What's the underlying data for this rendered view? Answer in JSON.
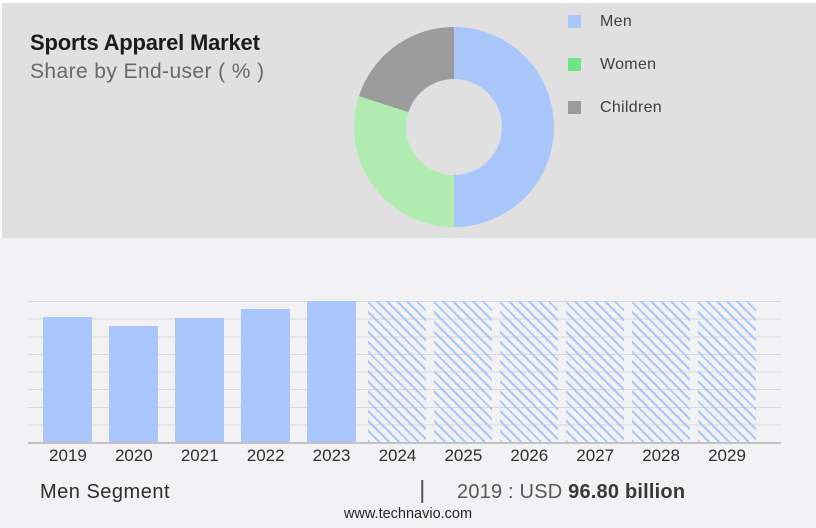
{
  "header": {
    "title": "Sports Apparel Market",
    "subtitle": "Share by End-user ( % )"
  },
  "legend": {
    "items": [
      {
        "label": "Men",
        "color": "#a9c7fa"
      },
      {
        "label": "Women",
        "color": "#72e287"
      },
      {
        "label": "Children",
        "color": "#9b9b9b"
      }
    ]
  },
  "chart_data": [
    {
      "type": "pie",
      "subtype": "donut",
      "title": "Sports Apparel Market",
      "subtitle": "Share by End-user ( % )",
      "units": "%",
      "donut_hole_ratio": 0.48,
      "legend_position": "right",
      "segments": [
        {
          "label": "Men",
          "value": 50,
          "color": "#a9c6fa"
        },
        {
          "label": "Women",
          "value": 30,
          "color": "#b0ecb0"
        },
        {
          "label": "Children",
          "value": 20,
          "color": "#9b9b9b"
        }
      ]
    },
    {
      "type": "bar",
      "title": "Men Segment",
      "units": "USD billion",
      "gridlines": true,
      "annotation": "2019 : USD 96.80 billion",
      "forecast_note": "2024-2029 drawn as full-height hatched forecast placeholders",
      "bars": [
        {
          "year": "2019",
          "value_usd_billion": 96.8,
          "height_frac": 0.886,
          "hatched": false
        },
        {
          "year": "2020",
          "value_usd_billion": 89.8,
          "height_frac": 0.823,
          "hatched": false
        },
        {
          "year": "2021",
          "value_usd_billion": 95.6,
          "height_frac": 0.876,
          "hatched": false
        },
        {
          "year": "2022",
          "value_usd_billion": 103.0,
          "height_frac": 0.943,
          "hatched": false
        },
        {
          "year": "2023",
          "value_usd_billion": 109.2,
          "height_frac": 1.0,
          "hatched": false
        },
        {
          "year": "2024",
          "value_usd_billion": null,
          "height_frac": 1.0,
          "hatched": true
        },
        {
          "year": "2025",
          "value_usd_billion": null,
          "height_frac": 1.0,
          "hatched": true
        },
        {
          "year": "2026",
          "value_usd_billion": null,
          "height_frac": 1.0,
          "hatched": true
        },
        {
          "year": "2027",
          "value_usd_billion": null,
          "height_frac": 1.0,
          "hatched": true
        },
        {
          "year": "2028",
          "value_usd_billion": null,
          "height_frac": 1.0,
          "hatched": true
        },
        {
          "year": "2029",
          "value_usd_billion": null,
          "height_frac": 1.0,
          "hatched": true
        }
      ]
    }
  ],
  "caption": {
    "segment_label": "Men Segment",
    "separator": "|",
    "annotation_prefix": "2019 : USD",
    "annotation_value": "96.80 billion"
  },
  "footer": {
    "website": "www.technavio.com"
  },
  "colors": {
    "top_panel_bg": "#e0e0e1",
    "bottom_panel_bg": "#f2f2f4",
    "bar_blue": "#a9c7fa",
    "donut_green": "#b0ecb0",
    "legend_green": "#72e287",
    "series_gray": "#9b9b9b",
    "gridline": "#d9d9d9",
    "axis_line": "#c3c3c5"
  }
}
